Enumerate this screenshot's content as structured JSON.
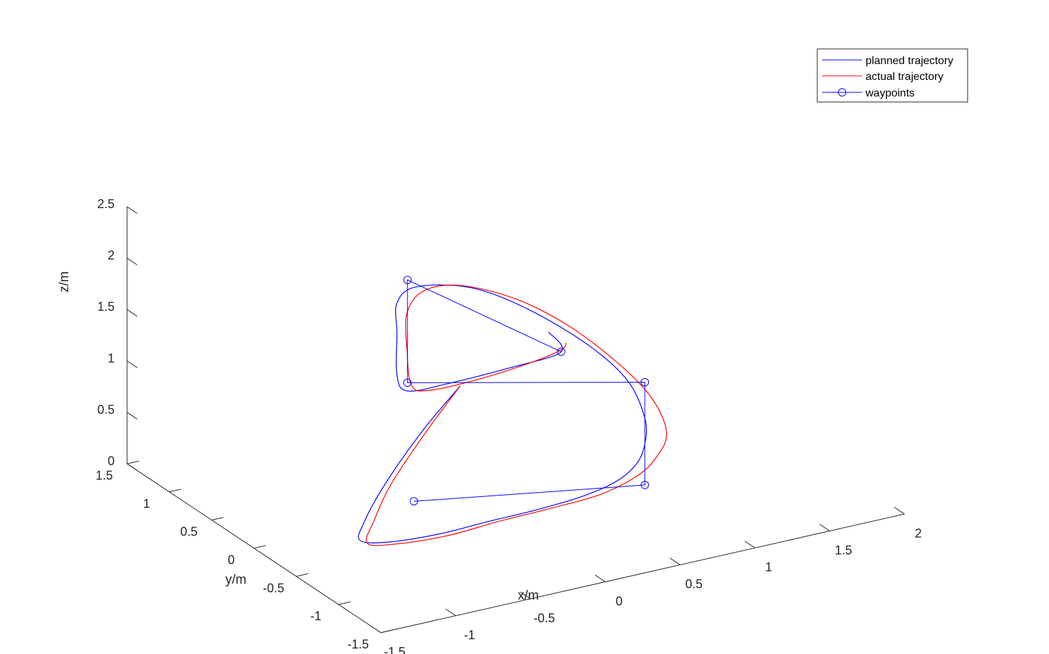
{
  "chart_data": {
    "type": "line3d",
    "title": "",
    "xlabel": "x/m",
    "ylabel": "y/m",
    "zlabel": "z/m",
    "xlim": [
      -1.5,
      2
    ],
    "ylim": [
      -1.5,
      1.5
    ],
    "zlim": [
      0,
      2.5
    ],
    "x_ticks": [
      -1.5,
      -1,
      -0.5,
      0,
      0.5,
      1,
      1.5,
      2
    ],
    "x_tick_labels": [
      "-1.5",
      "-1",
      "-0.5",
      "0",
      "0.5",
      "1",
      "1.5",
      "2"
    ],
    "y_ticks": [
      -1.5,
      -1,
      -0.5,
      0,
      0.5,
      1,
      1.5
    ],
    "y_tick_labels": [
      "-1.5",
      "-1",
      "-0.5",
      "0",
      "0.5",
      "1",
      "1.5"
    ],
    "z_ticks": [
      0,
      0.5,
      1,
      1.5,
      2,
      2.5
    ],
    "z_tick_labels": [
      "0",
      "0.5",
      "1",
      "1.5",
      "2",
      "2.5"
    ],
    "grid": false,
    "legend_location": "top-right",
    "colors": {
      "planned": "#0000ff",
      "actual": "#ff0000",
      "axes": "#262626"
    },
    "series": [
      {
        "name": "planned trajectory",
        "color": "#0000ff",
        "points": [
          [
            0.36,
            0.85,
            0.5
          ],
          [
            0.11,
            0.85,
            0.15
          ],
          [
            -0.17,
            0.8,
            -0.25
          ],
          [
            -0.37,
            0.7,
            -0.51
          ],
          [
            -0.45,
            0.6,
            -0.6
          ],
          [
            -0.3,
            0.52,
            -0.62
          ],
          [
            0.0,
            0.45,
            -0.6
          ],
          [
            0.3,
            0.4,
            -0.55
          ],
          [
            0.55,
            0.3,
            -0.47
          ],
          [
            0.78,
            0.15,
            -0.33
          ],
          [
            0.92,
            0.0,
            -0.15
          ],
          [
            1.0,
            -0.1,
            0.05
          ],
          [
            1.0,
            -0.2,
            0.3
          ],
          [
            1.0,
            -0.2,
            0.55
          ],
          [
            1.0,
            0.0,
            0.8
          ],
          [
            0.88,
            0.25,
            1.05
          ],
          [
            0.64,
            0.55,
            1.32
          ],
          [
            0.4,
            0.8,
            1.47
          ],
          [
            0.15,
            1.0,
            1.45
          ],
          [
            0.05,
            1.05,
            1.3
          ],
          [
            0.05,
            1.05,
            1.0
          ],
          [
            0.05,
            1.05,
            0.6
          ],
          [
            0.12,
            1.05,
            0.42
          ],
          [
            0.3,
            0.85,
            0.55
          ],
          [
            0.55,
            0.6,
            0.75
          ],
          [
            0.78,
            0.4,
            0.94
          ],
          [
            0.78,
            0.55,
            1.05
          ]
        ]
      },
      {
        "name": "actual trajectory",
        "color": "#ff0000",
        "points": [
          [
            0.36,
            0.85,
            0.5
          ],
          [
            0.12,
            0.82,
            0.16
          ],
          [
            -0.15,
            0.76,
            -0.23
          ],
          [
            -0.32,
            0.66,
            -0.47
          ],
          [
            -0.42,
            0.57,
            -0.62
          ],
          [
            -0.26,
            0.5,
            -0.64
          ],
          [
            0.04,
            0.43,
            -0.62
          ],
          [
            0.35,
            0.37,
            -0.55
          ],
          [
            0.62,
            0.25,
            -0.45
          ],
          [
            0.86,
            0.08,
            -0.3
          ],
          [
            1.02,
            -0.08,
            -0.08
          ],
          [
            1.08,
            -0.2,
            0.15
          ],
          [
            1.1,
            -0.28,
            0.42
          ],
          [
            1.05,
            -0.2,
            0.72
          ],
          [
            0.95,
            0.0,
            0.97
          ],
          [
            0.78,
            0.3,
            1.24
          ],
          [
            0.58,
            0.58,
            1.42
          ],
          [
            0.34,
            0.82,
            1.5
          ],
          [
            0.17,
            0.95,
            1.43
          ],
          [
            0.1,
            1.02,
            1.2
          ],
          [
            0.1,
            1.02,
            0.85
          ],
          [
            0.12,
            1.0,
            0.5
          ],
          [
            0.22,
            0.95,
            0.45
          ],
          [
            0.45,
            0.75,
            0.6
          ],
          [
            0.68,
            0.52,
            0.82
          ],
          [
            0.8,
            0.42,
            0.95
          ],
          [
            0.84,
            0.45,
            0.98
          ]
        ]
      },
      {
        "name": "waypoints",
        "color": "#0000ff",
        "marker": "circle",
        "points": [
          [
            -0.12,
            0.55,
            -0.3
          ],
          [
            1.0,
            -0.2,
            -0.1
          ],
          [
            1.0,
            -0.2,
            0.9
          ],
          [
            0.12,
            1.05,
            0.5
          ],
          [
            0.12,
            1.05,
            1.5
          ],
          [
            0.78,
            0.4,
            0.94
          ]
        ]
      }
    ]
  }
}
